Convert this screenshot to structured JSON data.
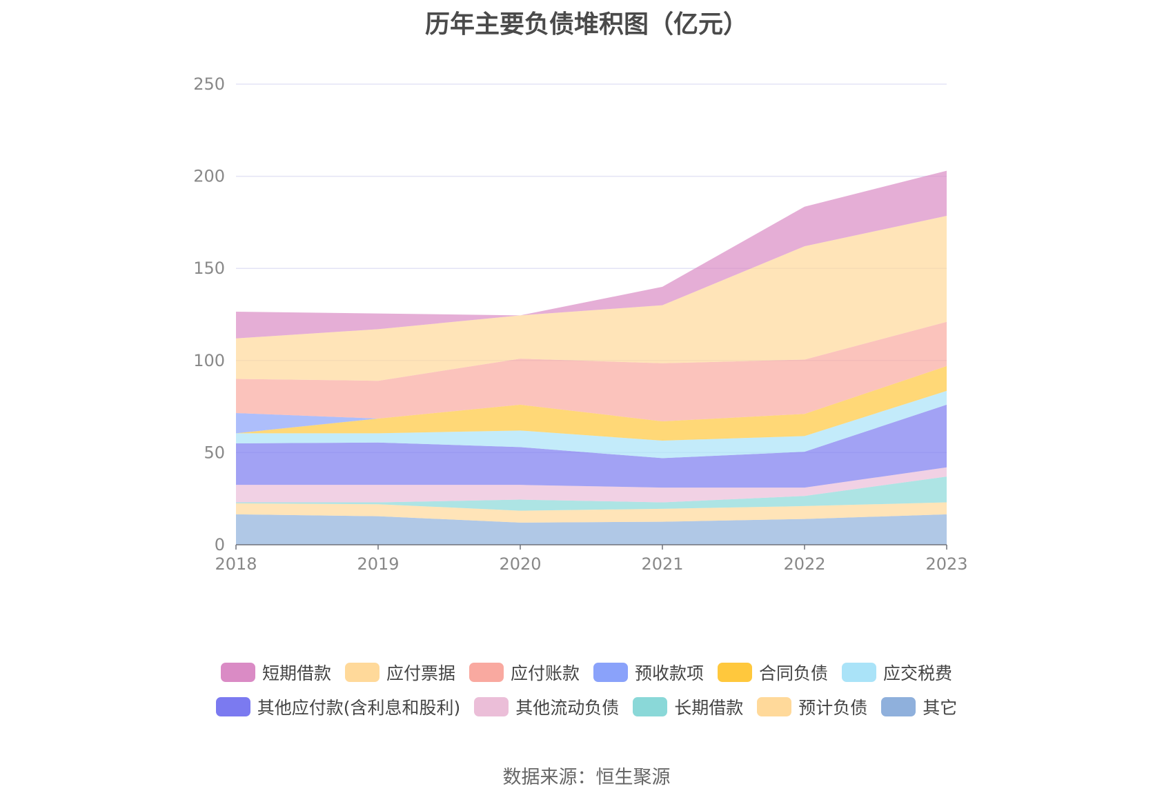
{
  "chart_title": "历年主要负债堆积图（亿元）",
  "source_text": "数据来源：恒生聚源",
  "chart_data": {
    "type": "area",
    "stacked": true,
    "title": "历年主要负债堆积图（亿元）",
    "xlabel": "",
    "ylabel": "",
    "x": [
      "2018",
      "2019",
      "2020",
      "2021",
      "2022",
      "2023"
    ],
    "ylim": [
      0,
      250
    ],
    "yticks": [
      0,
      50,
      100,
      150,
      200,
      250
    ],
    "grid": true,
    "legend_position": "bottom",
    "series": [
      {
        "name": "其它",
        "color": "#8fb0dc",
        "values": [
          16.5,
          15.5,
          12.0,
          12.5,
          14.0,
          16.5
        ]
      },
      {
        "name": "预计负债",
        "color": "#ffd99a",
        "values": [
          6.0,
          6.5,
          6.5,
          7.0,
          7.0,
          6.5
        ]
      },
      {
        "name": "长期借款",
        "color": "#8ad8d8",
        "values": [
          0.5,
          1.0,
          6.0,
          3.5,
          5.5,
          14.0
        ]
      },
      {
        "name": "其他流动负债",
        "color": "#ebbed8",
        "values": [
          9.5,
          9.5,
          8.0,
          8.0,
          4.5,
          5.0
        ]
      },
      {
        "name": "其他应付款(含利息和股利)",
        "color": "#7b7af0",
        "values": [
          22.5,
          23.0,
          20.5,
          16.0,
          19.5,
          34.0
        ]
      },
      {
        "name": "应交税费",
        "color": "#aae3f8",
        "values": [
          5.5,
          5.0,
          9.0,
          9.5,
          8.5,
          7.5
        ]
      },
      {
        "name": "合同负债",
        "color": "#ffc83d",
        "values": [
          0.0,
          8.0,
          14.0,
          10.5,
          12.0,
          13.5
        ]
      },
      {
        "name": "预收款项",
        "color": "#8aa2fa",
        "values": [
          11.0,
          0.0,
          0.0,
          0.0,
          0.0,
          0.0
        ]
      },
      {
        "name": "应付账款",
        "color": "#f9a9a0",
        "values": [
          18.5,
          20.5,
          25.0,
          31.5,
          29.5,
          24.0
        ]
      },
      {
        "name": "应付票据",
        "color": "#ffd99a",
        "values": [
          22.0,
          28.0,
          23.5,
          31.5,
          61.5,
          57.5
        ]
      },
      {
        "name": "短期借款",
        "color": "#da8bc5",
        "values": [
          14.5,
          8.5,
          0.0,
          10.0,
          21.5,
          24.5
        ]
      }
    ],
    "legend_rows": [
      [
        "短期借款",
        "应付票据",
        "应付账款",
        "预收款项",
        "合同负债",
        "应交税费"
      ],
      [
        "其他应付款(含利息和股利)",
        "其他流动负债",
        "长期借款",
        "预计负债",
        "其它"
      ]
    ]
  }
}
